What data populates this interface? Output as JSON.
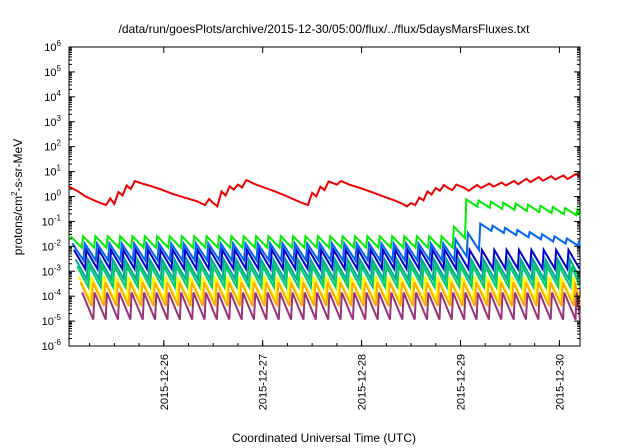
{
  "chart_data": {
    "type": "line",
    "title": "/data/run/goesPlots/archive/2015-12-30/05:00/flux/../flux/5daysMarsFluxes.txt",
    "xlabel": "Coordinated Universal Time (UTC)",
    "ylabel": {
      "pre": "protons/cm",
      "sup": "2",
      "post": "-s-sr-MeV"
    },
    "yscale": "log",
    "ylim_exp": [
      -6,
      6
    ],
    "y_ticks": [
      {
        "base": "10",
        "exp": "-6"
      },
      {
        "base": "10",
        "exp": "-5"
      },
      {
        "base": "10",
        "exp": "-4"
      },
      {
        "base": "10",
        "exp": "-3"
      },
      {
        "base": "10",
        "exp": "-2"
      },
      {
        "base": "10",
        "exp": "-1"
      },
      {
        "base": "10",
        "exp": "0"
      },
      {
        "base": "10",
        "exp": "1"
      },
      {
        "base": "10",
        "exp": "2"
      },
      {
        "base": "10",
        "exp": "3"
      },
      {
        "base": "10",
        "exp": "4"
      },
      {
        "base": "10",
        "exp": "5"
      },
      {
        "base": "10",
        "exp": "6"
      }
    ],
    "xlim": [
      "2015-12-25T01:00",
      "2015-12-30T05:00"
    ],
    "x_ticks": [
      {
        "date": "2015-12-26T00:00",
        "label": "2015-12-26"
      },
      {
        "date": "2015-12-27T00:00",
        "label": "2015-12-27"
      },
      {
        "date": "2015-12-28T00:00",
        "label": "2015-12-28"
      },
      {
        "date": "2015-12-29T00:00",
        "label": "2015-12-29"
      },
      {
        "date": "2015-12-30T00:00",
        "label": "2015-12-30"
      }
    ],
    "grid": false,
    "legend": false,
    "series": [
      {
        "color": "#ee0000",
        "points": [
          [
            "2015-12-25T01:00",
            2.5
          ],
          [
            "2015-12-25T03:00",
            1.7
          ],
          [
            "2015-12-25T05:00",
            1.0
          ],
          [
            "2015-12-25T08:00",
            0.6
          ],
          [
            "2015-12-25T10:00",
            0.45
          ],
          [
            "2015-12-25T11:00",
            0.85
          ],
          [
            "2015-12-25T12:00",
            0.5
          ],
          [
            "2015-12-25T13:00",
            1.5
          ],
          [
            "2015-12-25T14:00",
            1.1
          ],
          [
            "2015-12-25T15:00",
            2.8
          ],
          [
            "2015-12-25T16:00",
            2.0
          ],
          [
            "2015-12-25T17:00",
            4.2
          ],
          [
            "2015-12-25T19:00",
            3.2
          ],
          [
            "2015-12-25T21:00",
            2.6
          ],
          [
            "2015-12-25T23:00",
            2.0
          ],
          [
            "2015-12-26T02:00",
            1.3
          ],
          [
            "2015-12-26T05:00",
            0.9
          ],
          [
            "2015-12-26T08:00",
            0.65
          ],
          [
            "2015-12-26T10:00",
            0.45
          ],
          [
            "2015-12-26T11:00",
            0.8
          ],
          [
            "2015-12-26T12:00",
            0.55
          ],
          [
            "2015-12-26T13:00",
            0.4
          ],
          [
            "2015-12-26T14:00",
            1.6
          ],
          [
            "2015-12-26T15:00",
            1.1
          ],
          [
            "2015-12-26T16:00",
            2.6
          ],
          [
            "2015-12-26T17:00",
            1.9
          ],
          [
            "2015-12-26T18:00",
            3.0
          ],
          [
            "2015-12-26T19:00",
            2.3
          ],
          [
            "2015-12-26T20:00",
            4.6
          ],
          [
            "2015-12-26T22:00",
            3.2
          ],
          [
            "2015-12-27T00:00",
            2.4
          ],
          [
            "2015-12-27T03:00",
            1.6
          ],
          [
            "2015-12-27T06:00",
            1.0
          ],
          [
            "2015-12-27T09:00",
            0.6
          ],
          [
            "2015-12-27T11:00",
            0.45
          ],
          [
            "2015-12-27T12:00",
            1.4
          ],
          [
            "2015-12-27T13:00",
            1.0
          ],
          [
            "2015-12-27T14:00",
            2.5
          ],
          [
            "2015-12-27T15:00",
            1.8
          ],
          [
            "2015-12-27T16:00",
            4.0
          ],
          [
            "2015-12-27T18:00",
            3.0
          ],
          [
            "2015-12-27T19:00",
            4.2
          ],
          [
            "2015-12-27T21:00",
            3.0
          ],
          [
            "2015-12-28T00:00",
            2.1
          ],
          [
            "2015-12-28T03:00",
            1.4
          ],
          [
            "2015-12-28T06:00",
            0.9
          ],
          [
            "2015-12-28T08:00",
            0.7
          ],
          [
            "2015-12-28T10:00",
            0.5
          ],
          [
            "2015-12-28T11:00",
            0.4
          ],
          [
            "2015-12-28T12:00",
            0.55
          ],
          [
            "2015-12-28T13:00",
            0.45
          ],
          [
            "2015-12-28T14:00",
            0.9
          ],
          [
            "2015-12-28T15:00",
            0.7
          ],
          [
            "2015-12-28T16:00",
            1.6
          ],
          [
            "2015-12-28T17:00",
            1.2
          ],
          [
            "2015-12-28T18:00",
            2.2
          ],
          [
            "2015-12-28T19:00",
            1.7
          ],
          [
            "2015-12-28T20:00",
            2.9
          ],
          [
            "2015-12-28T21:00",
            2.2
          ],
          [
            "2015-12-28T22:00",
            1.8
          ],
          [
            "2015-12-28T23:00",
            3.0
          ],
          [
            "2015-12-29T01:00",
            2.2
          ],
          [
            "2015-12-29T02:00",
            1.7
          ],
          [
            "2015-12-29T04:00",
            2.9
          ],
          [
            "2015-12-29T05:00",
            2.2
          ],
          [
            "2015-12-29T07:00",
            3.3
          ],
          [
            "2015-12-29T08:00",
            2.5
          ],
          [
            "2015-12-29T10:00",
            3.6
          ],
          [
            "2015-12-29T11:00",
            2.8
          ],
          [
            "2015-12-29T13:00",
            4.2
          ],
          [
            "2015-12-29T14:00",
            3.1
          ],
          [
            "2015-12-29T16:00",
            5.2
          ],
          [
            "2015-12-29T17:00",
            3.8
          ],
          [
            "2015-12-29T19:00",
            6.0
          ],
          [
            "2015-12-29T20:00",
            4.3
          ],
          [
            "2015-12-29T22:00",
            6.5
          ],
          [
            "2015-12-29T23:00",
            4.8
          ],
          [
            "2015-12-30T01:00",
            7.0
          ],
          [
            "2015-12-30T02:00",
            5.0
          ],
          [
            "2015-12-30T04:00",
            8.0
          ],
          [
            "2015-12-30T05:00",
            6.0
          ]
        ]
      },
      {
        "color": "#00ee00",
        "base": 0.015,
        "amp": 1.7,
        "peaks": [
          [
            2015122820,
            0.035
          ],
          [
            2015122822,
            0.08
          ],
          [
            2015122901,
            0.55
          ]
        ],
        "tail": [
          0.55,
          0.22
        ]
      },
      {
        "color": "#0066ee",
        "base": 0.006,
        "amp": 2.2,
        "peaks": [
          [
            2015122901,
            0.1
          ],
          [
            2015122902,
            0.07
          ]
        ],
        "tail": [
          0.07,
          0.012
        ]
      },
      {
        "color": "#0000cc",
        "base": 0.003,
        "amp": 2.4
      },
      {
        "color": "#00aa99",
        "base": 0.0012,
        "amp": 2.5
      },
      {
        "color": "#00cc66",
        "base": 0.0006,
        "amp": 2.6
      },
      {
        "color": "#ffff00",
        "base": 0.0002,
        "amp": 3.0
      },
      {
        "color": "#ffaa00",
        "base": 0.00012,
        "amp": 3.0
      },
      {
        "color": "#993377",
        "base": 4e-05,
        "amp": 3.5
      }
    ]
  }
}
